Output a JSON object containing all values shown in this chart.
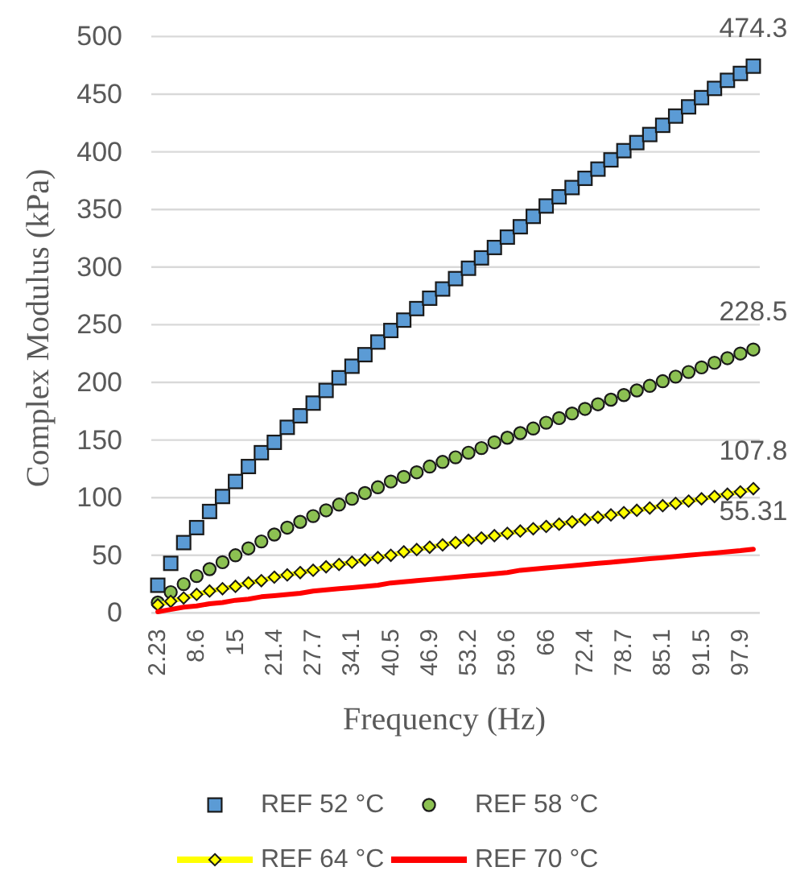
{
  "chart_data": {
    "type": "scatter",
    "xlabel": "Frequency (Hz)",
    "ylabel": "Complex Modulus (kPa)",
    "categories": [
      "2.23",
      null,
      null,
      "8.6",
      null,
      null,
      "15",
      null,
      null,
      "21.4",
      null,
      null,
      "27.7",
      null,
      null,
      "34.1",
      null,
      null,
      "40.5",
      null,
      null,
      "46.9",
      null,
      null,
      "53.2",
      null,
      null,
      "59.6",
      null,
      null,
      "66",
      null,
      null,
      "72.4",
      null,
      null,
      "78.7",
      null,
      null,
      "85.1",
      null,
      null,
      "91.5",
      null,
      null,
      "97.9",
      null
    ],
    "ylim": [
      0,
      500
    ],
    "yticks": [
      0,
      50,
      100,
      150,
      200,
      250,
      300,
      350,
      400,
      450,
      500
    ],
    "grid": "y",
    "legend": "bottom",
    "series": [
      {
        "name": "REF 52 °C",
        "marker": "square",
        "color": "#5b9bd5",
        "values": [
          24,
          43,
          61,
          74,
          88,
          101,
          114,
          127,
          139,
          148,
          161,
          171,
          182,
          193,
          204,
          214,
          224,
          235,
          245,
          254,
          264,
          273,
          281,
          290,
          299,
          308,
          317,
          326,
          335,
          344,
          353,
          361,
          369,
          377,
          385,
          393,
          401,
          408,
          415,
          423,
          431,
          439,
          447,
          455,
          462,
          468,
          474.3
        ],
        "value_labels": [
          null,
          null,
          null,
          null,
          null,
          null,
          null,
          null,
          null,
          null,
          null,
          null,
          null,
          null,
          null,
          null,
          null,
          null,
          null,
          null,
          null,
          null,
          null,
          null,
          null,
          null,
          null,
          null,
          null,
          null,
          null,
          null,
          null,
          null,
          null,
          null,
          null,
          null,
          null,
          null,
          null,
          null,
          null,
          null,
          null,
          null,
          "474.3"
        ]
      },
      {
        "name": "REF 58 °C",
        "marker": "circle",
        "color": "#8cc152",
        "values": [
          9,
          18,
          25,
          32,
          38,
          44,
          50,
          56,
          62,
          68,
          74,
          79,
          84,
          89,
          94,
          99,
          104,
          109,
          114,
          118,
          122,
          127,
          131,
          135,
          139,
          143,
          148,
          152,
          156,
          160,
          165,
          169,
          173,
          177,
          181,
          185,
          189,
          193,
          197,
          201,
          205,
          209,
          213,
          217,
          221,
          225,
          228.5
        ],
        "value_labels": [
          null,
          null,
          null,
          null,
          null,
          null,
          null,
          null,
          null,
          null,
          null,
          null,
          null,
          null,
          null,
          null,
          null,
          null,
          null,
          null,
          null,
          null,
          null,
          null,
          null,
          null,
          null,
          null,
          null,
          null,
          null,
          null,
          null,
          null,
          null,
          null,
          null,
          null,
          null,
          null,
          null,
          null,
          null,
          null,
          null,
          null,
          "228.5"
        ]
      },
      {
        "name": "REF 64 °C",
        "type": "line",
        "marker": "diamond",
        "color": "#ffff00",
        "values": [
          7,
          10,
          13,
          16,
          19,
          21,
          23,
          26,
          28,
          31,
          33,
          35,
          37,
          40,
          42,
          44,
          46,
          48,
          50,
          53,
          55,
          57,
          59,
          61,
          63,
          65,
          67,
          69,
          71,
          73,
          75,
          77,
          79,
          81,
          83,
          85,
          87,
          89,
          91,
          93,
          95,
          97,
          99,
          101,
          103,
          105,
          107.8
        ],
        "value_labels": [
          null,
          null,
          null,
          null,
          null,
          null,
          null,
          null,
          null,
          null,
          null,
          null,
          null,
          null,
          null,
          null,
          null,
          null,
          null,
          null,
          null,
          null,
          null,
          null,
          null,
          null,
          null,
          null,
          null,
          null,
          null,
          null,
          null,
          null,
          null,
          null,
          null,
          null,
          null,
          null,
          null,
          null,
          null,
          null,
          null,
          null,
          "107.8"
        ]
      },
      {
        "name": "REF 70 °C",
        "type": "line",
        "color": "#ff0000",
        "values": [
          1,
          3,
          5,
          6,
          8,
          9,
          11,
          12,
          14,
          15,
          16,
          17,
          19,
          20,
          21,
          22,
          23,
          24,
          26,
          27,
          28,
          29,
          30,
          31,
          32,
          33,
          34,
          35,
          37,
          38,
          39,
          40,
          41,
          42,
          43,
          44,
          45,
          46,
          47,
          48,
          49,
          50,
          51,
          52,
          53,
          54,
          55.31
        ],
        "value_labels": [
          null,
          null,
          null,
          null,
          null,
          null,
          null,
          null,
          null,
          null,
          null,
          null,
          null,
          null,
          null,
          null,
          null,
          null,
          null,
          null,
          null,
          null,
          null,
          null,
          null,
          null,
          null,
          null,
          null,
          null,
          null,
          null,
          null,
          null,
          null,
          null,
          null,
          null,
          null,
          null,
          null,
          null,
          null,
          null,
          null,
          null,
          "55.31"
        ]
      }
    ]
  }
}
